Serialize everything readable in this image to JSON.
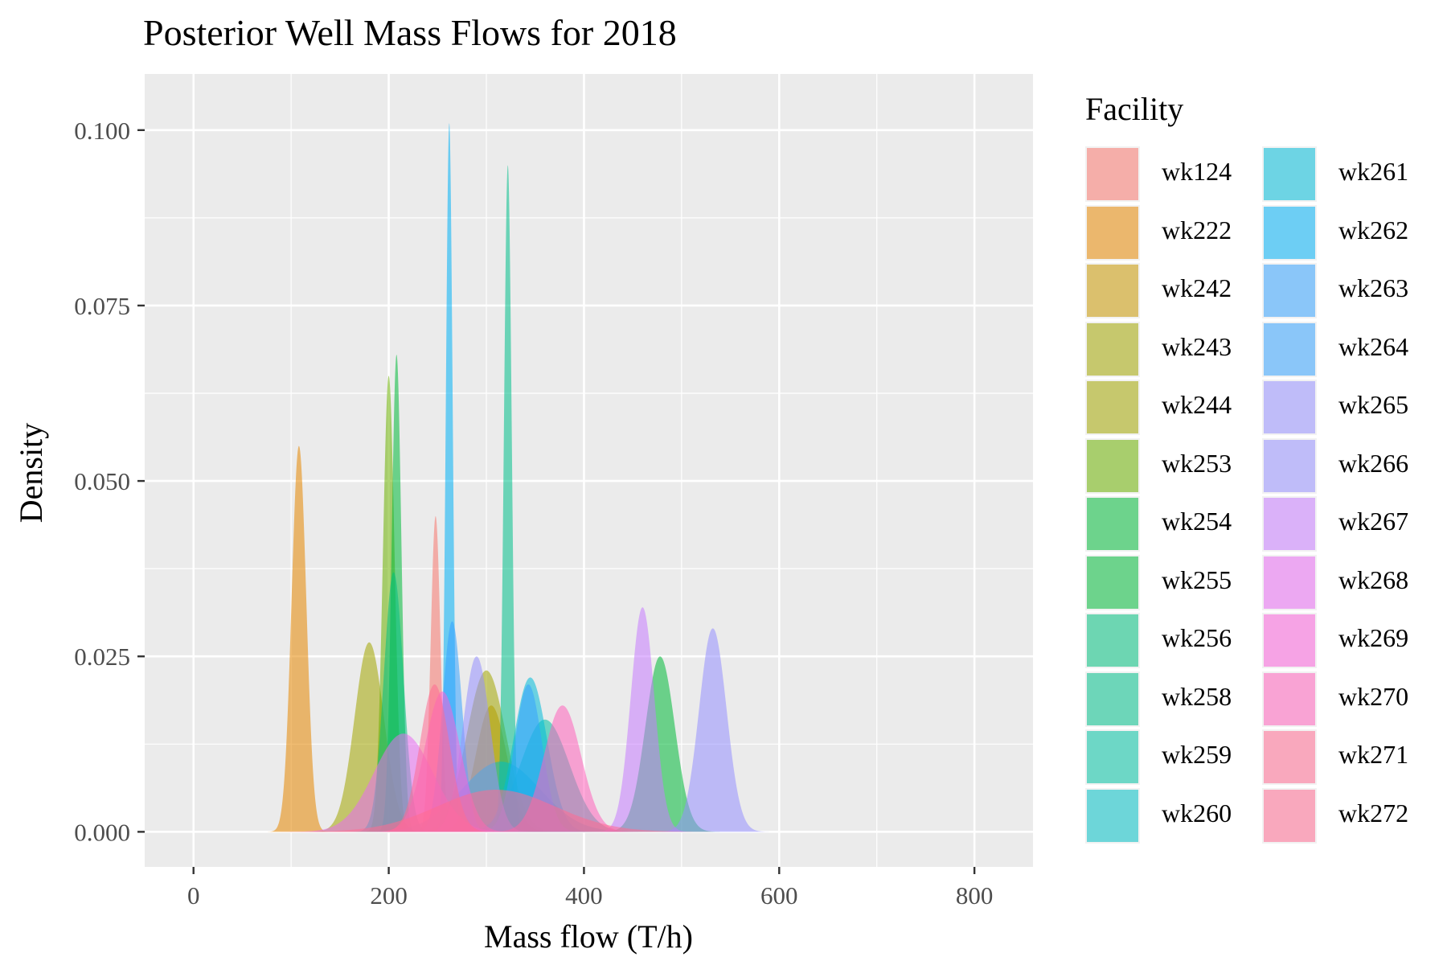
{
  "chart_data": {
    "type": "area",
    "title": "Posterior Well Mass Flows for 2018",
    "xlabel": "Mass flow (T/h)",
    "ylabel": "Density",
    "xlim": [
      -50,
      860
    ],
    "ylim": [
      -0.005,
      0.108
    ],
    "x_ticks": [
      0,
      200,
      400,
      600,
      800
    ],
    "y_ticks": [
      0.0,
      0.025,
      0.05,
      0.075,
      0.1
    ],
    "x_tick_labels": [
      "0",
      "200",
      "400",
      "600",
      "800"
    ],
    "y_tick_labels": [
      "0.000",
      "0.025",
      "0.050",
      "0.075",
      "0.100"
    ],
    "grid": true,
    "legend_title": "Facility",
    "legend_position": "right",
    "fill_opacity": 0.55,
    "series": [
      {
        "name": "wk124",
        "color": "#F8766D",
        "mean": 248,
        "sd": 5,
        "peak": 0.045
      },
      {
        "name": "wk222",
        "color": "#E58700",
        "mean": 108,
        "sd": 7.5,
        "peak": 0.055
      },
      {
        "name": "wk242",
        "color": "#C99800",
        "mean": 305,
        "sd": 16,
        "peak": 0.018
      },
      {
        "name": "wk243",
        "color": "#A3A500",
        "mean": 180,
        "sd": 15,
        "peak": 0.027
      },
      {
        "name": "wk244",
        "color": "#A3A500",
        "mean": 300,
        "sd": 20,
        "peak": 0.023
      },
      {
        "name": "wk253",
        "color": "#6BB100",
        "mean": 200,
        "sd": 6,
        "peak": 0.065
      },
      {
        "name": "wk254",
        "color": "#00BA38",
        "mean": 208,
        "sd": 5,
        "peak": 0.068
      },
      {
        "name": "wk255",
        "color": "#00BA38",
        "mean": 478,
        "sd": 15,
        "peak": 0.025
      },
      {
        "name": "wk256",
        "color": "#00BF7D",
        "mean": 205,
        "sd": 10,
        "peak": 0.037
      },
      {
        "name": "wk258",
        "color": "#00C08B",
        "mean": 322,
        "sd": 4,
        "peak": 0.095
      },
      {
        "name": "wk259",
        "color": "#00C1A3",
        "mean": 360,
        "sd": 25,
        "peak": 0.016
      },
      {
        "name": "wk260",
        "color": "#00BFC4",
        "mean": 315,
        "sd": 40,
        "peak": 0.01
      },
      {
        "name": "wk261",
        "color": "#00BCD8",
        "mean": 345,
        "sd": 17,
        "peak": 0.022
      },
      {
        "name": "wk262",
        "color": "#00B0F6",
        "mean": 262,
        "sd": 3.5,
        "peak": 0.101
      },
      {
        "name": "wk263",
        "color": "#35A2FF",
        "mean": 265,
        "sd": 10,
        "peak": 0.03
      },
      {
        "name": "wk264",
        "color": "#35A2FF",
        "mean": 343,
        "sd": 14,
        "peak": 0.021
      },
      {
        "name": "wk265",
        "color": "#9590FF",
        "mean": 290,
        "sd": 14,
        "peak": 0.025
      },
      {
        "name": "wk266",
        "color": "#9590FF",
        "mean": 532,
        "sd": 14,
        "peak": 0.029
      },
      {
        "name": "wk267",
        "color": "#C77CFF",
        "mean": 460,
        "sd": 12,
        "peak": 0.032
      },
      {
        "name": "wk268",
        "color": "#E76BF3",
        "mean": 215,
        "sd": 30,
        "peak": 0.014
      },
      {
        "name": "wk269",
        "color": "#FA62DB",
        "mean": 255,
        "sd": 18,
        "peak": 0.02
      },
      {
        "name": "wk270",
        "color": "#FF62BC",
        "mean": 378,
        "sd": 19,
        "peak": 0.018
      },
      {
        "name": "wk271",
        "color": "#FF6C91",
        "mean": 310,
        "sd": 60,
        "peak": 0.006
      },
      {
        "name": "wk272",
        "color": "#FF6C91",
        "mean": 247,
        "sd": 15,
        "peak": 0.021
      }
    ]
  }
}
